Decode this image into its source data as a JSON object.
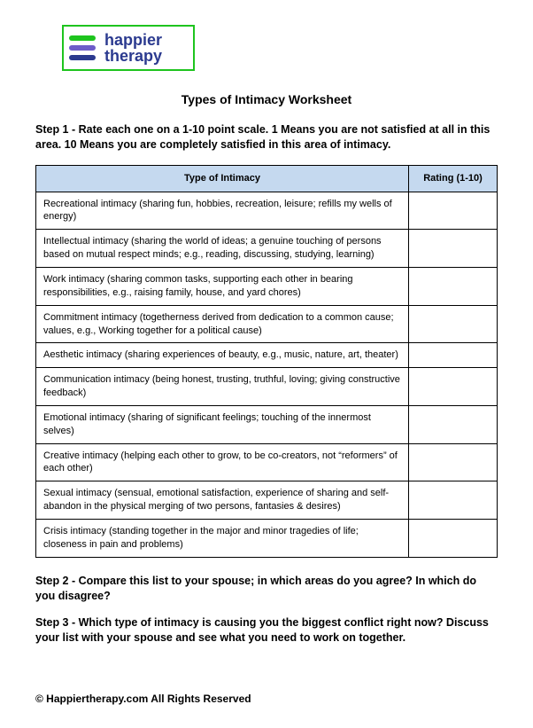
{
  "logo": {
    "line1": "happier",
    "line2": "therapy"
  },
  "title": "Types of Intimacy Worksheet",
  "step1_label": "Step 1",
  "step1_text": " - Rate each one on a 1-10 point scale. 1 Means you are not satisfied at all in this area. 10 Means you are completely satisfied in this area of intimacy.",
  "table": {
    "header_type": "Type of Intimacy",
    "header_rating": "Rating (1-10)",
    "rows": [
      "Recreational intimacy (sharing fun, hobbies, recreation, leisure; refills my wells of energy)",
      "Intellectual intimacy (sharing the world of ideas; a genuine touching of persons based on mutual respect minds; e.g., reading, discussing, studying, learning)",
      "Work intimacy (sharing common tasks, supporting each other in bearing responsibilities, e.g., raising family, house, and yard chores)",
      "Commitment intimacy (togetherness derived from dedication to a common cause; values, e.g., Working together for a political cause)",
      "Aesthetic intimacy (sharing experiences of beauty, e.g., music, nature, art, theater)",
      "Communication intimacy (being honest, trusting, truthful, loving; giving constructive feedback)",
      "Emotional intimacy (sharing of significant feelings; touching of the innermost selves)",
      "Creative intimacy (helping each other to grow, to be co-creators, not “reformers” of each other)",
      "Sexual intimacy (sensual, emotional satisfaction, experience of sharing and self-abandon in the physical merging of two persons, fantasies & desires)",
      "Crisis intimacy (standing together in the major and minor tragedies of life; closeness in pain and problems)"
    ]
  },
  "step2_label": "Step 2",
  "step2_text": " - Compare this list to your spouse; in which areas do you agree? In which do you disagree?",
  "step3_label": "Step 3",
  "step3_text": " - Which type of intimacy is causing you the biggest conflict right now? Discuss your list with your spouse and see what you need to work on together.",
  "footer": "© Happiertherapy.com All Rights Reserved"
}
